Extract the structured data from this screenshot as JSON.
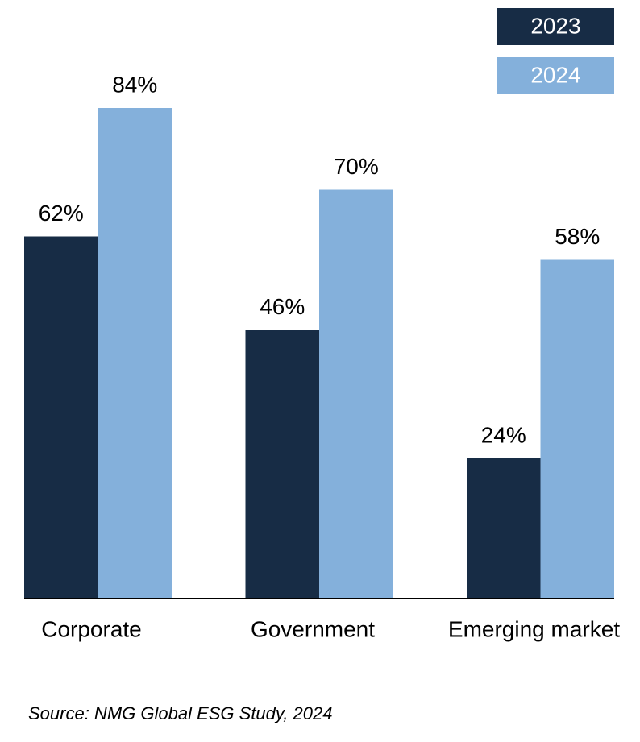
{
  "chart_data": {
    "type": "bar",
    "categories": [
      "Corporate",
      "Government",
      "Emerging market"
    ],
    "series": [
      {
        "name": "2023",
        "color": "#172c45",
        "values": [
          62,
          46,
          24
        ],
        "value_labels": [
          "62%",
          "46%",
          "24%"
        ]
      },
      {
        "name": "2024",
        "color": "#84b0db",
        "values": [
          84,
          70,
          58
        ],
        "value_labels": [
          "84%",
          "70%",
          "58%"
        ]
      }
    ],
    "legend": "top-right",
    "source": "Source: NMG Global ESG Study, 2024"
  }
}
